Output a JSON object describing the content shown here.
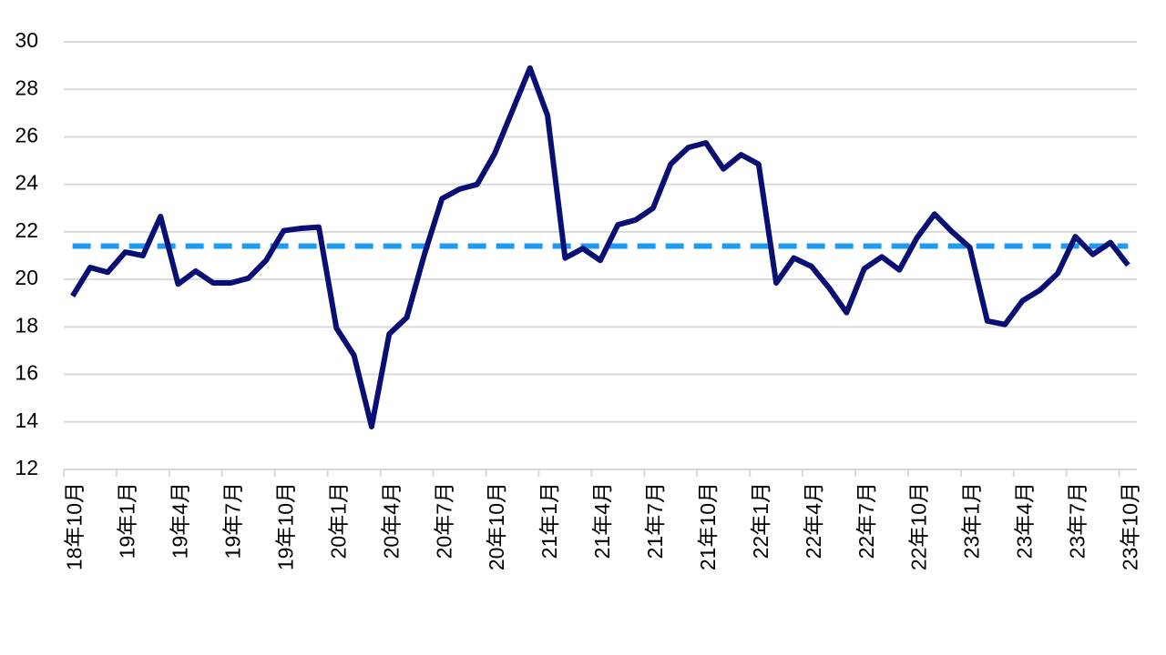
{
  "chart_data": {
    "type": "line",
    "categories": [
      "18年10月",
      null,
      null,
      "19年1月",
      null,
      null,
      "19年4月",
      null,
      null,
      "19年7月",
      null,
      null,
      "19年10月",
      null,
      null,
      "20年1月",
      null,
      null,
      "20年4月",
      null,
      null,
      "20年7月",
      null,
      null,
      "20年10月",
      null,
      null,
      "21年1月",
      null,
      null,
      "21年4月",
      null,
      null,
      "21年7月",
      null,
      null,
      "21年10月",
      null,
      null,
      "22年1月",
      null,
      null,
      "22年4月",
      null,
      null,
      "22年7月",
      null,
      null,
      "22年10月",
      null,
      null,
      "23年1月",
      null,
      null,
      "23年4月",
      null,
      null,
      "23年7月",
      null,
      null,
      "23年10月"
    ],
    "series": [
      {
        "color": "#0a0f73",
        "values": [
          19.3,
          20.5,
          20.3,
          21.15,
          21.0,
          22.65,
          19.8,
          20.35,
          19.85,
          19.85,
          20.05,
          20.8,
          22.05,
          22.15,
          22.2,
          17.95,
          16.8,
          13.8,
          17.7,
          18.4,
          21.05,
          23.4,
          23.8,
          24.0,
          25.3,
          27.1,
          28.9,
          26.9,
          20.9,
          21.3,
          20.8,
          22.3,
          22.5,
          23.0,
          24.85,
          25.55,
          25.75,
          24.65,
          25.25,
          24.85,
          19.85,
          20.9,
          20.55,
          19.65,
          18.6,
          20.45,
          20.95,
          20.4,
          21.75,
          22.75,
          22.0,
          21.35,
          18.25,
          18.1,
          19.1,
          19.55,
          20.25,
          21.8,
          21.05,
          21.55,
          20.6
        ]
      }
    ],
    "reference_line": {
      "value": 21.4,
      "color": "#1e9bf0"
    },
    "ylim": [
      12,
      30
    ],
    "yticks": [
      12,
      14,
      16,
      18,
      20,
      22,
      24,
      26,
      28,
      30
    ],
    "grid": true
  }
}
